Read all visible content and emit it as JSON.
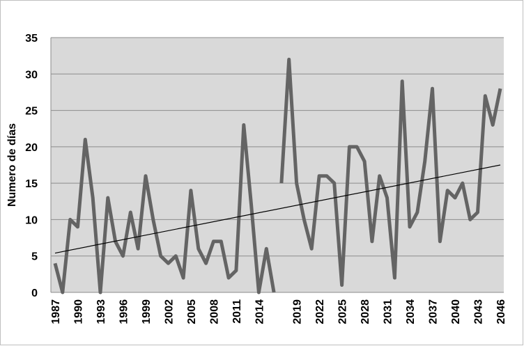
{
  "chart_data": {
    "type": "line",
    "title": "",
    "xlabel": "",
    "ylabel": "Numero de días",
    "ylim": [
      0,
      35
    ],
    "yticks": [
      "0",
      "5",
      "10",
      "15",
      "20",
      "25",
      "30",
      "35"
    ],
    "xlim": [
      1987,
      2046
    ],
    "xticks": [
      "1987",
      "1990",
      "1993",
      "1996",
      "1999",
      "2002",
      "2005",
      "2008",
      "2011",
      "2014",
      "2019",
      "2022",
      "2025",
      "2028",
      "2031",
      "2034",
      "2037",
      "2040",
      "2043",
      "2046"
    ],
    "grid": true,
    "series": [
      {
        "x": [
          1987,
          1988,
          1989,
          1990,
          1991,
          1992,
          1993,
          1994,
          1995,
          1996,
          1997,
          1998,
          1999,
          2000,
          2001,
          2002,
          2003,
          2004,
          2005,
          2006,
          2007,
          2008,
          2009,
          2010,
          2011,
          2012,
          2013,
          2014,
          2015,
          2016
        ],
        "values": [
          4,
          0,
          10,
          9,
          21,
          13,
          0,
          13,
          7,
          5,
          11,
          6,
          16,
          10,
          5,
          4,
          5,
          2,
          14,
          6,
          4,
          7,
          7,
          2,
          3,
          23,
          12,
          0,
          6,
          0
        ],
        "color": "#646464"
      },
      {
        "x": [
          2017,
          2018,
          2019,
          2020,
          2021,
          2022,
          2023,
          2024,
          2025,
          2026,
          2027,
          2028,
          2029,
          2030,
          2031,
          2032,
          2033,
          2034,
          2035,
          2036,
          2037,
          2038,
          2039,
          2040,
          2041,
          2042,
          2043,
          2044,
          2045,
          2046
        ],
        "values": [
          15,
          32,
          15,
          10,
          6,
          16,
          16,
          15,
          1,
          20,
          20,
          18,
          7,
          16,
          13,
          2,
          29,
          9,
          11,
          18,
          28,
          7,
          14,
          13,
          15,
          10,
          11,
          27,
          23,
          28
        ],
        "color": "#646464"
      }
    ],
    "trendline": {
      "x": [
        1987,
        2046
      ],
      "values": [
        5.4,
        17.5
      ],
      "color": "#000000"
    }
  }
}
